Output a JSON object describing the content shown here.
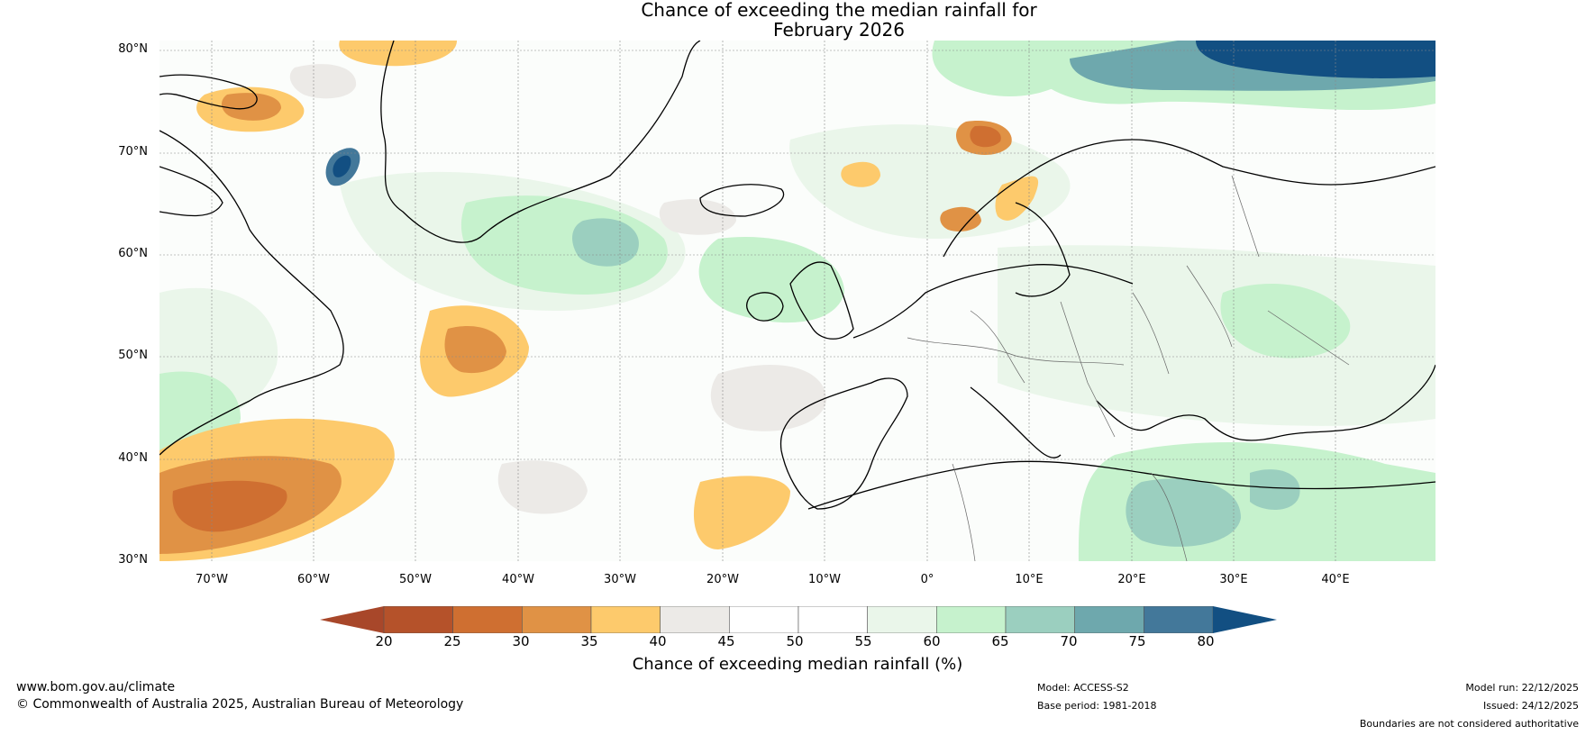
{
  "title": {
    "line1": "Chance of exceeding the median rainfall for",
    "line2": "February 2026"
  },
  "lat_labels": [
    "80°N",
    "70°N",
    "60°N",
    "50°N",
    "40°N",
    "30°N"
  ],
  "lon_labels": [
    "70°W",
    "60°W",
    "50°W",
    "40°W",
    "30°W",
    "20°W",
    "10°W",
    "0°",
    "10°E",
    "20°E",
    "30°E",
    "40°E"
  ],
  "colorbar": {
    "ticks": [
      "20",
      "25",
      "30",
      "35",
      "40",
      "45",
      "50",
      "55",
      "60",
      "65",
      "70",
      "75",
      "80"
    ],
    "colors": [
      "#b5522a",
      "#cf6f31",
      "#e09245",
      "#fdca6c",
      "#eceae7",
      "#ffffff",
      "#ffffff",
      "#eaf6ea",
      "#c6f2cd",
      "#9bcfbf",
      "#6ea8ad",
      "#43789a",
      "#124f82"
    ],
    "low_color": "#a8472a",
    "high_color": "#124f82",
    "label": "Chance of exceeding median rainfall (%)"
  },
  "footer": {
    "website": "www.bom.gov.au/climate",
    "copyright": "© Commonwealth of Australia 2025, Australian Bureau of Meteorology",
    "model": "Model: ACCESS-S2",
    "base_period": "Base period: 1981-2018",
    "model_run": "Model run: 22/12/2025",
    "issued": "Issued: 24/12/2025",
    "disclaimer": "Boundaries are not considered authoritative"
  }
}
